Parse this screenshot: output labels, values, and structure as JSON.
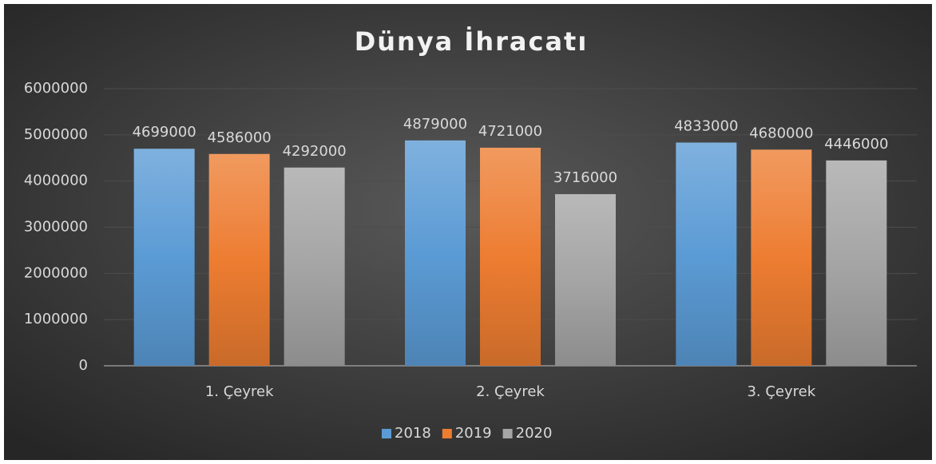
{
  "chart_data": {
    "type": "bar",
    "title": "Dünya İhracatı",
    "categories": [
      "1. Çeyrek",
      "2. Çeyrek",
      "3. Çeyrek"
    ],
    "series": [
      {
        "name": "2018",
        "color": "#5b9bd5",
        "values": [
          4699000,
          4879000,
          4833000
        ]
      },
      {
        "name": "2019",
        "color": "#ed7d31",
        "values": [
          4586000,
          4721000,
          4680000
        ]
      },
      {
        "name": "2020",
        "color": "#a5a5a5",
        "values": [
          4292000,
          3716000,
          4446000
        ]
      }
    ],
    "ylim": [
      0,
      6000000
    ],
    "yticks": [
      0,
      1000000,
      2000000,
      3000000,
      4000000,
      5000000,
      6000000
    ],
    "grid": true,
    "legend": "bottom"
  }
}
